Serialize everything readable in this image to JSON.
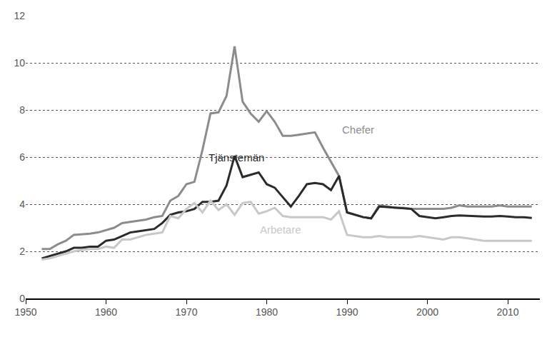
{
  "chart_data": {
    "type": "line",
    "x": [
      1952,
      1953,
      1954,
      1955,
      1956,
      1957,
      1958,
      1959,
      1960,
      1961,
      1962,
      1963,
      1964,
      1965,
      1966,
      1967,
      1968,
      1969,
      1970,
      1971,
      1972,
      1973,
      1974,
      1975,
      1976,
      1977,
      1978,
      1979,
      1980,
      1981,
      1982,
      1983,
      1984,
      1985,
      1986,
      1987,
      1988,
      1989,
      1990,
      1991,
      1992,
      1993,
      1994,
      1995,
      1996,
      1997,
      1998,
      1999,
      2000,
      2001,
      2002,
      2003,
      2004,
      2005,
      2006,
      2007,
      2008,
      2009,
      2010,
      2011,
      2012,
      2013
    ],
    "series": [
      {
        "name": "Chefer",
        "color": "#8c8c8c",
        "values": [
          2.1,
          2.1,
          2.3,
          2.45,
          2.7,
          2.72,
          2.75,
          2.8,
          2.9,
          3.0,
          3.2,
          3.25,
          3.3,
          3.35,
          3.45,
          3.5,
          4.15,
          4.35,
          4.85,
          4.95,
          6.3,
          7.85,
          7.9,
          8.6,
          10.7,
          8.35,
          7.85,
          7.5,
          7.95,
          7.5,
          6.9,
          6.9,
          6.95,
          7.0,
          7.05,
          6.4,
          5.8,
          5.2,
          3.65,
          3.55,
          3.45,
          3.4,
          3.95,
          3.9,
          3.85,
          3.85,
          3.8,
          3.8,
          3.8,
          3.8,
          3.8,
          3.85,
          3.95,
          3.9,
          3.9,
          3.9,
          3.9,
          3.95,
          3.9,
          3.9,
          3.9,
          3.9
        ]
      },
      {
        "name": "Tjänstemän",
        "color": "#2b2b2b",
        "values": [
          1.7,
          1.8,
          1.9,
          2.0,
          2.15,
          2.15,
          2.2,
          2.2,
          2.45,
          2.5,
          2.65,
          2.8,
          2.85,
          2.9,
          2.95,
          3.2,
          3.55,
          3.65,
          3.7,
          3.8,
          4.1,
          4.1,
          4.15,
          4.8,
          6.05,
          5.15,
          5.25,
          5.35,
          4.85,
          4.7,
          4.3,
          3.9,
          4.35,
          4.85,
          4.9,
          4.85,
          4.6,
          5.2,
          3.65,
          3.55,
          3.45,
          3.4,
          3.9,
          3.88,
          3.85,
          3.82,
          3.8,
          3.5,
          3.45,
          3.4,
          3.45,
          3.5,
          3.52,
          3.5,
          3.5,
          3.48,
          3.48,
          3.5,
          3.48,
          3.45,
          3.45,
          3.42
        ]
      },
      {
        "name": "Arbetare",
        "color": "#c8c8c8",
        "values": [
          1.65,
          1.7,
          1.8,
          1.9,
          2.0,
          2.05,
          2.1,
          2.1,
          2.2,
          2.15,
          2.5,
          2.5,
          2.6,
          2.7,
          2.75,
          2.8,
          3.5,
          3.4,
          3.8,
          4.05,
          3.65,
          4.15,
          3.75,
          4.0,
          3.55,
          4.05,
          4.1,
          3.6,
          3.7,
          3.85,
          3.5,
          3.45,
          3.45,
          3.45,
          3.45,
          3.45,
          3.35,
          3.7,
          2.7,
          2.65,
          2.6,
          2.6,
          2.65,
          2.6,
          2.6,
          2.6,
          2.6,
          2.65,
          2.6,
          2.55,
          2.5,
          2.6,
          2.6,
          2.55,
          2.5,
          2.45,
          2.45,
          2.45,
          2.45,
          2.45,
          2.45,
          2.45
        ]
      }
    ],
    "xlim": [
      1950,
      2014
    ],
    "xticks": [
      1950,
      1960,
      1970,
      1980,
      1990,
      2000,
      2010
    ],
    "ylim": [
      0,
      12
    ],
    "yticks": [
      0,
      2,
      4,
      6,
      8,
      10,
      12
    ],
    "grid": true
  }
}
